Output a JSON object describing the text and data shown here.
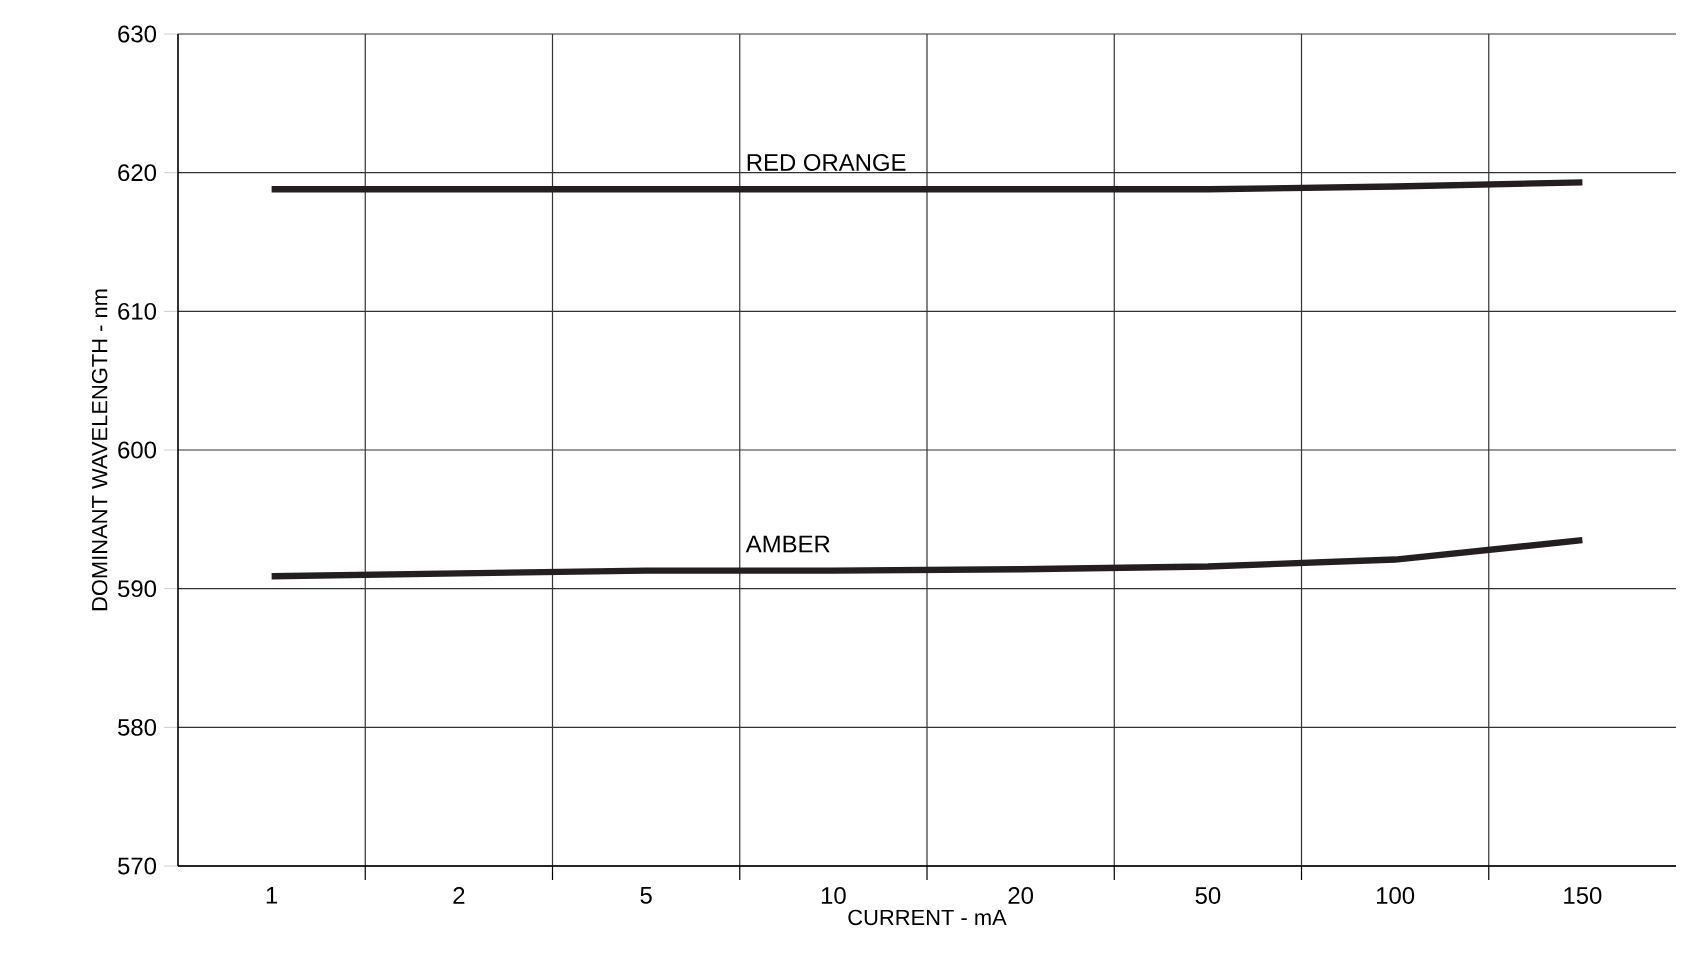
{
  "chart_data": {
    "type": "line",
    "xlabel": "CURRENT - mA",
    "ylabel": "DOMINANT WAVELENGTH - nm",
    "categories": [
      "1",
      "2",
      "5",
      "10",
      "20",
      "50",
      "100",
      "150"
    ],
    "series": [
      {
        "color": "#231f20",
        "values": [
          618.8,
          618.8,
          618.8,
          618.8,
          618.8,
          618.8,
          619.0,
          619.3
        ]
      },
      {
        "color": "#231f20",
        "values": [
          590.9,
          591.1,
          591.3,
          591.3,
          591.4,
          591.6,
          592.1,
          593.5
        ]
      }
    ],
    "annotations": [
      "RED ORANGE",
      "AMBER"
    ],
    "ylim": [
      570,
      630
    ],
    "yticks": [
      570,
      580,
      590,
      600,
      610,
      620,
      630
    ],
    "grid": true,
    "marker": "none",
    "line_style": "solid"
  }
}
